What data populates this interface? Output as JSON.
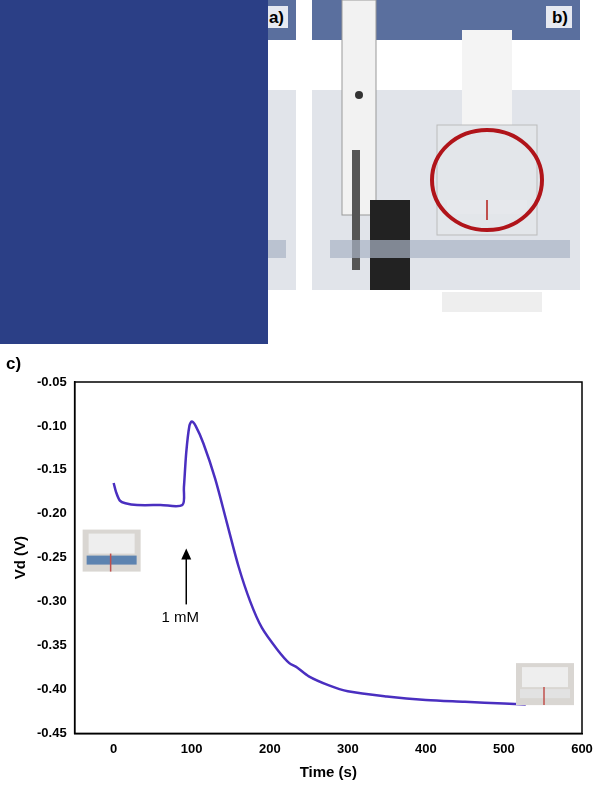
{
  "chart_data": {
    "type": "line",
    "panel_label": "c)",
    "x_label": "Time (s)",
    "y_label": "Vd (V)",
    "x": [
      0,
      3,
      8,
      15,
      30,
      60,
      88,
      90,
      93,
      97,
      100,
      105,
      115,
      130,
      145,
      160,
      175,
      190,
      210,
      225,
      235,
      250,
      275,
      300,
      350,
      400,
      450,
      500,
      528
    ],
    "values": [
      -0.165,
      -0.175,
      -0.185,
      -0.188,
      -0.19,
      -0.19,
      -0.19,
      -0.17,
      -0.13,
      -0.1,
      -0.095,
      -0.1,
      -0.12,
      -0.16,
      -0.21,
      -0.26,
      -0.3,
      -0.33,
      -0.355,
      -0.37,
      -0.375,
      -0.385,
      -0.395,
      -0.402,
      -0.408,
      -0.412,
      -0.414,
      -0.416,
      -0.417
    ],
    "color": "#4a2fc0",
    "xlim": [
      -50,
      600
    ],
    "xticks": [
      0,
      100,
      200,
      300,
      400,
      500,
      600
    ],
    "ylim": [
      -0.45,
      -0.05
    ],
    "yticks": [
      -0.45,
      {
        "value": -0.4,
        "label": "-0.40"
      },
      -0.35,
      {
        "value": -0.3,
        "label": "-0.30"
      },
      -0.25,
      {
        "value": -0.2,
        "label": "-0.20"
      },
      -0.15,
      {
        "value": -0.1,
        "label": "-0.10"
      },
      -0.05
    ],
    "grid": false,
    "annotations": [
      {
        "text": "1 mM",
        "x": 93,
        "y": -0.31
      }
    ]
  },
  "photos": [
    {
      "label": "a)"
    },
    {
      "label": "b)"
    }
  ]
}
